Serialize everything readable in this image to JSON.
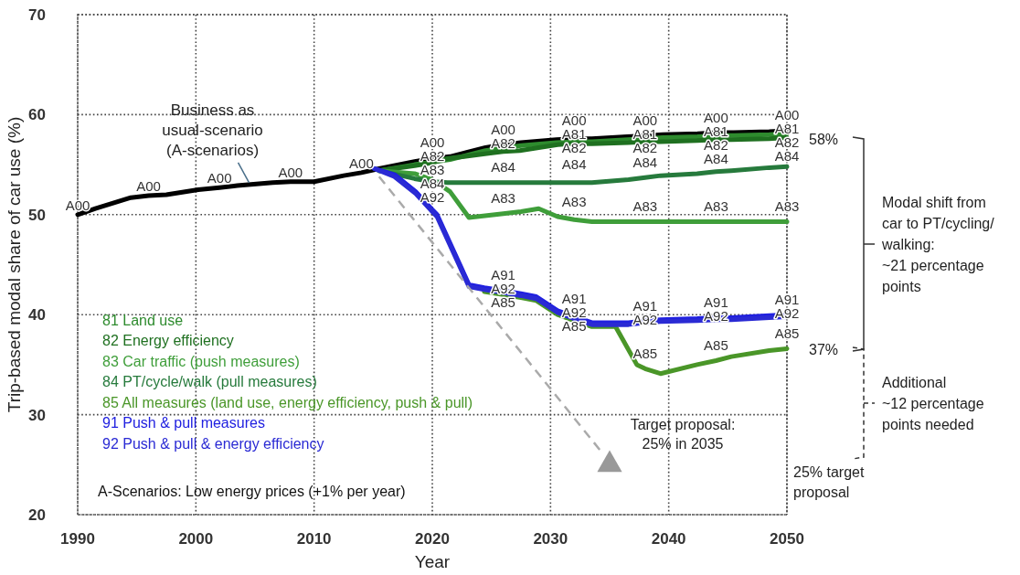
{
  "chart_data": {
    "type": "line",
    "xlabel": "Year",
    "ylabel": "Trip-based modal share of car use (%)",
    "xlim": [
      1990,
      2050
    ],
    "xticks": [
      1990,
      2000,
      2010,
      2020,
      2030,
      2040,
      2050
    ],
    "ylim": [
      20,
      70
    ],
    "yticks": [
      20,
      30,
      40,
      50,
      60,
      70
    ],
    "grid": true,
    "legend": "bottom left",
    "series": [
      {
        "color": "#000000",
        "x": [
          1990,
          1991.5,
          1994.5,
          1996,
          1997.5,
          2000.2,
          2002,
          2003.5,
          2006.5,
          2008,
          2010,
          2012.5,
          2014,
          2015.5,
          2018.5,
          2020,
          2021.5,
          2024.5,
          2026,
          2027.5,
          2030.5,
          2032,
          2033.5,
          2036.5,
          2038,
          2039.5,
          2042.5,
          2044,
          2045.5,
          2048.5,
          2050
        ],
        "values": [
          50.0,
          50.6,
          51.7,
          51.9,
          52.0,
          52.5,
          52.7,
          52.9,
          53.2,
          53.3,
          53.3,
          53.9,
          54.2,
          54.6,
          55.3,
          55.6,
          55.8,
          56.7,
          57.0,
          57.2,
          57.5,
          57.6,
          57.6,
          57.8,
          57.9,
          58.0,
          58.1,
          58.2,
          58.2,
          58.3,
          58.4
        ],
        "value_labels": [
          "A00",
          null,
          null,
          "A00",
          null,
          null,
          "A00",
          null,
          null,
          "A00",
          null,
          null,
          "A00",
          null,
          null,
          "A00",
          null,
          null,
          "A00",
          null,
          null,
          "A00",
          null,
          null,
          "A00",
          null,
          null,
          "A00",
          null,
          null,
          "A00"
        ]
      },
      {
        "name": "81 Land use",
        "color": "#2e8b2e",
        "x": [
          2015.5,
          2018.5,
          2021.5,
          2024.5,
          2027.5,
          2030.5,
          2032,
          2033.5,
          2036.5,
          2038,
          2039.5,
          2042.5,
          2044,
          2045.5,
          2048.5,
          2050
        ],
        "values": [
          54.4,
          55.0,
          55.5,
          56.4,
          56.9,
          57.2,
          57.3,
          57.3,
          57.5,
          57.6,
          57.7,
          57.8,
          57.9,
          57.9,
          58.0,
          58.1
        ],
        "value_labels": [
          null,
          null,
          null,
          null,
          null,
          null,
          "A81",
          null,
          null,
          "A81",
          null,
          null,
          "A81",
          null,
          null,
          "A81"
        ]
      },
      {
        "name": "82 Energy efficiency",
        "color": "#1f7020",
        "x": [
          2015.5,
          2018.5,
          2020,
          2021.2,
          2024.6,
          2026,
          2027.4,
          2030.6,
          2032,
          2033.5,
          2036.6,
          2038,
          2039.3,
          2042.4,
          2044,
          2045.3,
          2048.5,
          2050
        ],
        "values": [
          54.4,
          54.9,
          55.2,
          55.6,
          56.1,
          56.3,
          56.4,
          57.0,
          57.1,
          57.1,
          57.2,
          57.3,
          57.3,
          57.4,
          57.5,
          57.5,
          57.6,
          57.7
        ],
        "value_labels": [
          null,
          null,
          "A82",
          null,
          null,
          "A82",
          null,
          null,
          "A82",
          null,
          null,
          "A82",
          null,
          null,
          "A82",
          null,
          null,
          "A82"
        ]
      },
      {
        "name": "83 Car traffic (push measures)",
        "color": "#3f9e3a",
        "x": [
          2015.5,
          2018.5,
          2020,
          2021.5,
          2023.1,
          2026,
          2027.5,
          2029,
          2030.6,
          2032,
          2033.5,
          2036.6,
          2038,
          2039.3,
          2042.4,
          2044,
          2045.3,
          2048.5,
          2050
        ],
        "values": [
          54.4,
          54.1,
          53.5,
          52.3,
          49.7,
          50.1,
          50.3,
          50.6,
          49.8,
          49.5,
          49.3,
          49.3,
          49.3,
          49.3,
          49.3,
          49.3,
          49.3,
          49.3,
          49.3
        ],
        "value_labels": [
          null,
          null,
          "A83",
          null,
          null,
          "A83",
          null,
          null,
          null,
          "A83",
          null,
          null,
          "A83",
          null,
          null,
          "A83",
          null,
          null,
          "A83"
        ]
      },
      {
        "name": "84 PT/cycle/walk (pull measures)",
        "color": "#267a3c",
        "x": [
          2015.5,
          2018.5,
          2020,
          2021.3,
          2024.6,
          2026,
          2027.5,
          2030.5,
          2032,
          2033.5,
          2036.6,
          2038,
          2039.3,
          2042.4,
          2044,
          2045.3,
          2048.5,
          2050
        ],
        "values": [
          54.4,
          53.6,
          53.3,
          53.2,
          53.2,
          53.2,
          53.2,
          53.2,
          53.2,
          53.2,
          53.5,
          53.7,
          53.9,
          54.1,
          54.3,
          54.4,
          54.7,
          54.8
        ],
        "value_labels": [
          null,
          null,
          "A84",
          null,
          null,
          "A84",
          null,
          null,
          "A84",
          null,
          null,
          "A84",
          null,
          null,
          "A84",
          null,
          null,
          "A84"
        ]
      },
      {
        "name": "85 All measures (land use, energy efficiency, push & pull)",
        "color": "#4a9628",
        "x": [
          2024.4,
          2026,
          2027.5,
          2028.8,
          2030.6,
          2032,
          2033.5,
          2035.5,
          2037.3,
          2038,
          2039.3,
          2042.4,
          2044,
          2045.3,
          2048.5,
          2050
        ],
        "values": [
          42.3,
          42.0,
          41.7,
          41.4,
          40.0,
          39.4,
          38.8,
          38.8,
          35.0,
          34.6,
          34.1,
          35.0,
          35.4,
          35.8,
          36.4,
          36.6
        ],
        "value_labels": [
          null,
          "A85",
          null,
          null,
          null,
          "A85",
          null,
          null,
          null,
          "A85",
          null,
          null,
          "A85",
          null,
          null,
          "A85"
        ]
      },
      {
        "name": "91 Push & pull measures",
        "color": "#2020e0",
        "x": [
          2015.1,
          2016.8,
          2018.6,
          2020,
          2020.4,
          2023.1,
          2024.4,
          2026,
          2027.5,
          2028.8,
          2030.6,
          2032,
          2033.5,
          2036.6,
          2038,
          2039.3,
          2042.4,
          2044,
          2045.3,
          2048.5,
          2050
        ],
        "values": [
          54.6,
          54.0,
          52.3,
          50.5,
          50.0,
          43.0,
          42.7,
          42.4,
          42.1,
          41.8,
          40.4,
          39.8,
          39.2,
          39.2,
          39.4,
          39.5,
          39.6,
          39.7,
          39.7,
          39.9,
          40.0
        ],
        "value_labels": [
          null,
          null,
          null,
          null,
          null,
          null,
          null,
          "A91",
          null,
          null,
          null,
          "A91",
          null,
          null,
          "A91",
          null,
          null,
          "A91",
          null,
          null,
          "A91"
        ]
      },
      {
        "name": "92 Push & pull & energy efficiency",
        "color": "#2a2ad4",
        "x": [
          2015.1,
          2016.8,
          2018.6,
          2020,
          2020.4,
          2023.1,
          2024.4,
          2026,
          2027.5,
          2028.8,
          2030.6,
          2032,
          2033.5,
          2036.6,
          2038,
          2039.3,
          2042.4,
          2044,
          2045.3,
          2048.5,
          2050
        ],
        "values": [
          54.6,
          53.8,
          52.1,
          50.3,
          49.8,
          42.8,
          42.5,
          42.2,
          41.9,
          41.6,
          40.2,
          39.6,
          39.0,
          39.0,
          39.2,
          39.3,
          39.4,
          39.5,
          39.5,
          39.7,
          39.8
        ],
        "value_labels": [
          null,
          null,
          null,
          "A92",
          null,
          null,
          null,
          "A92",
          null,
          null,
          null,
          "A92",
          null,
          null,
          "A92",
          null,
          null,
          "A92",
          null,
          null,
          "A92"
        ]
      },
      {
        "color": "#aaaaaa",
        "line_style": "dashed",
        "x": [
          2015.5,
          2034.5
        ],
        "values": [
          53.8,
          26.0
        ]
      },
      {
        "type": "scatter",
        "color": "#999999",
        "marker": "triangle",
        "x": [
          2035
        ],
        "values": [
          25
        ]
      }
    ],
    "annotations": [
      {
        "text": "Business as\nusual-scenario\n(A-scenarios)",
        "x": 2004.5,
        "y": 53.0
      },
      {
        "text": "Target proposal:\n25% in 2035",
        "x": 2035,
        "y": 25
      },
      "A-Scenarios: Low energy prices (+1% per year)",
      "58%",
      "Modal shift from\ncar to PT/cycling/\nwalking:\n~21 percentage\npoints",
      "37%",
      "Additional\n~12 percentage\npoints needed",
      "25% target\nproposal"
    ]
  }
}
